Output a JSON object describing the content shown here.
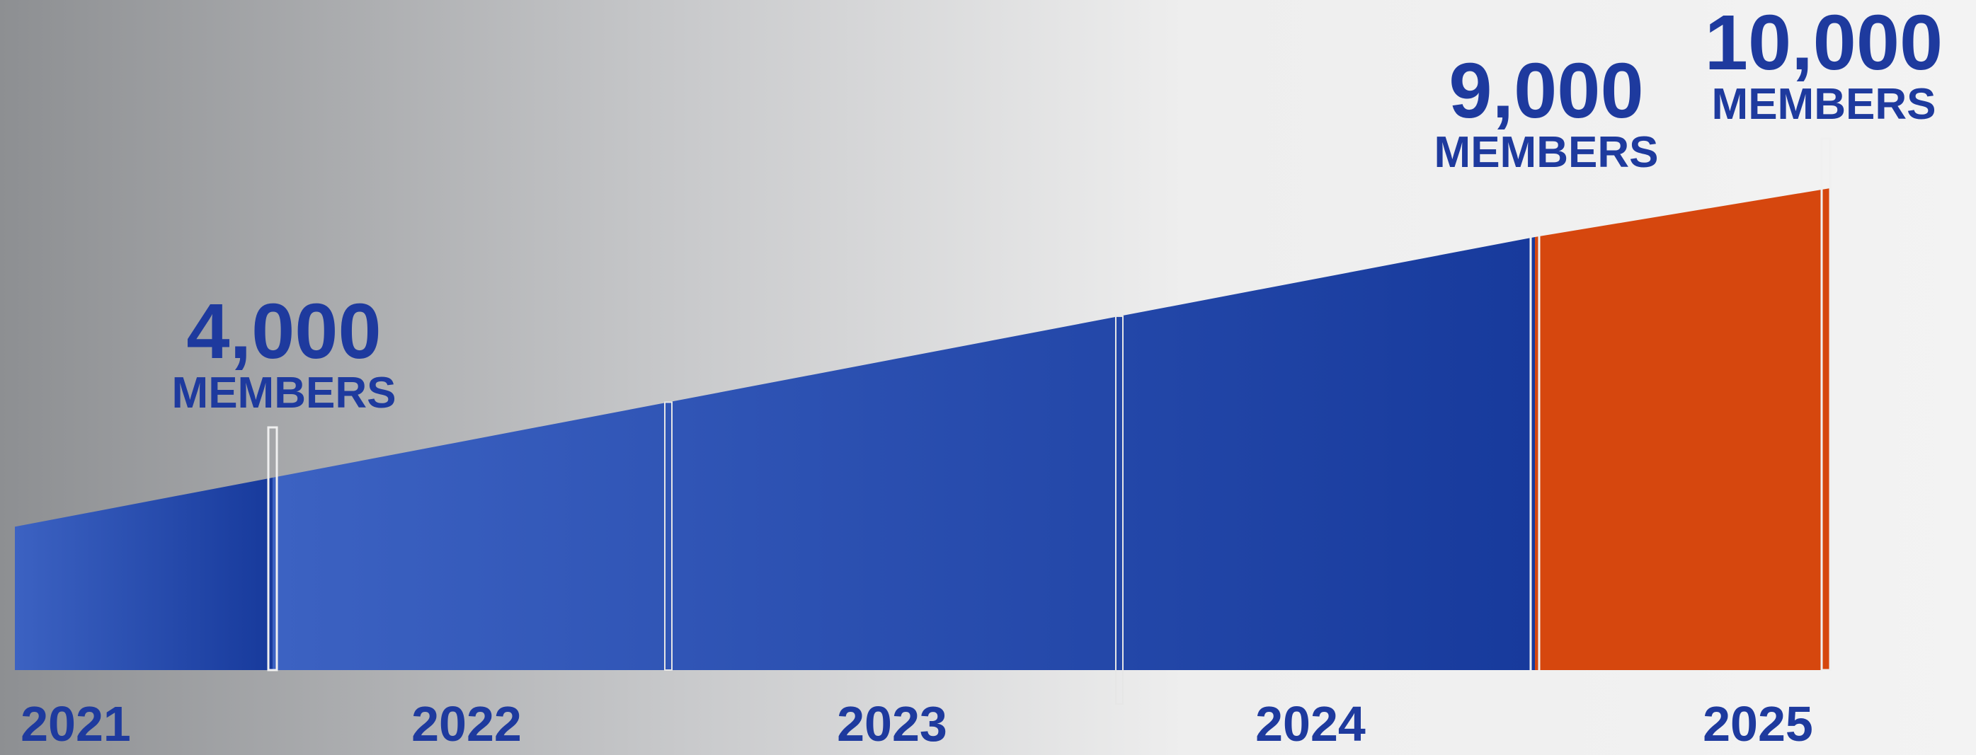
{
  "chart_data": {
    "type": "area",
    "categories": [
      "2021",
      "2022",
      "2023",
      "2024",
      "2025"
    ],
    "milestones": [
      {
        "value": 4000,
        "label": "4,000",
        "caption": "MEMBERS",
        "color": "#2f55b8"
      },
      {
        "value": 9000,
        "label": "9,000",
        "caption": "MEMBERS",
        "color": "#2f55b8"
      },
      {
        "value": 10000,
        "label": "10,000",
        "caption": "MEMBERS",
        "color": "#d6470e"
      }
    ]
  }
}
